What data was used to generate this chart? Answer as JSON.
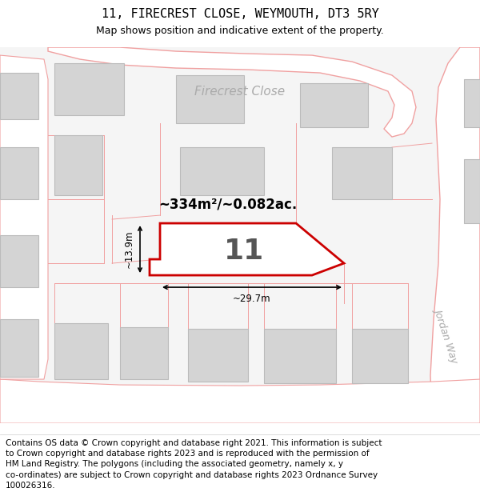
{
  "title": "11, FIRECREST CLOSE, WEYMOUTH, DT3 5RY",
  "subtitle": "Map shows position and indicative extent of the property.",
  "footer_line1": "Contains OS data © Crown copyright and database right 2021. This information is subject",
  "footer_line2": "to Crown copyright and database rights 2023 and is reproduced with the permission of",
  "footer_line3": "HM Land Registry. The polygons (including the associated geometry, namely x, y",
  "footer_line4": "co-ordinates) are subject to Crown copyright and database rights 2023 Ordnance Survey",
  "footer_line5": "100026316.",
  "area_label": "~334m²/~0.082ac.",
  "number_label": "11",
  "dim_width": "~29.7m",
  "dim_height": "~13.9m",
  "road_label": "Firecrest Close",
  "road_label2": "Jordan Way",
  "map_bg": "#f5f5f5",
  "road_fill": "#ffffff",
  "building_fill": "#d4d4d4",
  "building_stroke": "#bbbbbb",
  "road_stroke": "#f0a0a0",
  "plot_fill": "#ffffff",
  "plot_stroke": "#cc0000",
  "title_fontsize": 11,
  "subtitle_fontsize": 9,
  "footer_fontsize": 7.5
}
